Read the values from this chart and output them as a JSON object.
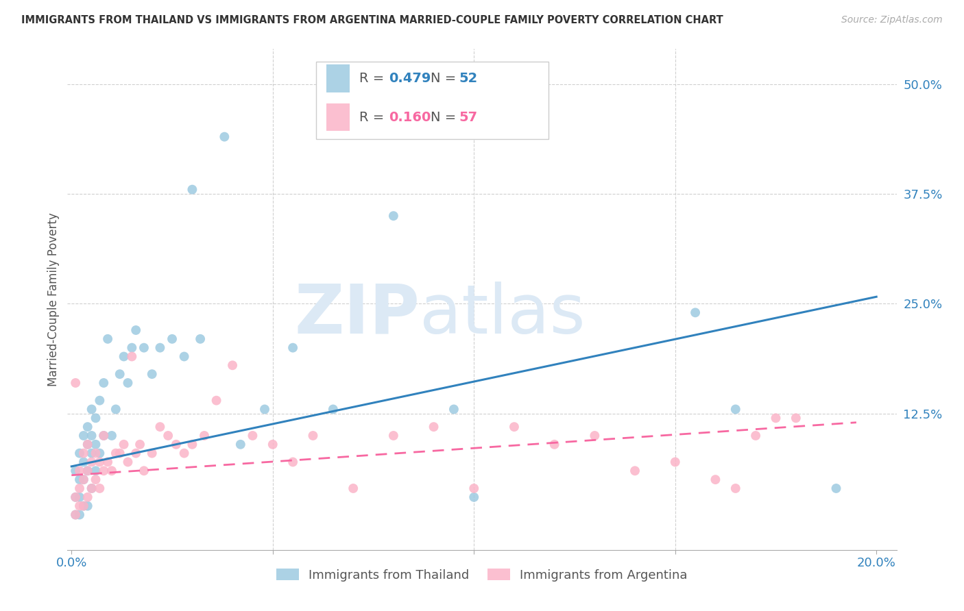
{
  "title": "IMMIGRANTS FROM THAILAND VS IMMIGRANTS FROM ARGENTINA MARRIED-COUPLE FAMILY POVERTY CORRELATION CHART",
  "source": "Source: ZipAtlas.com",
  "ylabel": "Married-Couple Family Poverty",
  "xlim": [
    -0.001,
    0.205
  ],
  "ylim": [
    -0.03,
    0.54
  ],
  "xticks": [
    0.0,
    0.05,
    0.1,
    0.15,
    0.2
  ],
  "xtick_labels": [
    "0.0%",
    "",
    "",
    "",
    "20.0%"
  ],
  "ytick_labels": [
    "12.5%",
    "25.0%",
    "37.5%",
    "50.0%"
  ],
  "yticks": [
    0.125,
    0.25,
    0.375,
    0.5
  ],
  "thailand_color": "#9ecae1",
  "argentina_color": "#fbb4c8",
  "trend_thailand_color": "#3182bd",
  "trend_argentina_color": "#f768a1",
  "watermark_zip_color": "#dce9f5",
  "watermark_atlas_color": "#dce9f5",
  "legend_r_thailand": "0.479",
  "legend_n_thailand": "52",
  "legend_r_argentina": "0.160",
  "legend_n_argentina": "57",
  "legend_label_thailand": "Immigrants from Thailand",
  "legend_label_argentina": "Immigrants from Argentina",
  "thailand_R": 0.479,
  "argentina_R": 0.16,
  "thailand_x": [
    0.001,
    0.001,
    0.001,
    0.002,
    0.002,
    0.002,
    0.002,
    0.003,
    0.003,
    0.003,
    0.003,
    0.004,
    0.004,
    0.004,
    0.004,
    0.005,
    0.005,
    0.005,
    0.005,
    0.006,
    0.006,
    0.006,
    0.007,
    0.007,
    0.008,
    0.008,
    0.009,
    0.01,
    0.011,
    0.012,
    0.013,
    0.014,
    0.015,
    0.016,
    0.018,
    0.02,
    0.022,
    0.025,
    0.028,
    0.03,
    0.032,
    0.038,
    0.042,
    0.048,
    0.055,
    0.065,
    0.08,
    0.095,
    0.1,
    0.155,
    0.165,
    0.19
  ],
  "thailand_y": [
    0.01,
    0.03,
    0.06,
    0.01,
    0.03,
    0.05,
    0.08,
    0.02,
    0.05,
    0.07,
    0.1,
    0.02,
    0.06,
    0.09,
    0.11,
    0.04,
    0.08,
    0.1,
    0.13,
    0.06,
    0.09,
    0.12,
    0.08,
    0.14,
    0.1,
    0.16,
    0.21,
    0.1,
    0.13,
    0.17,
    0.19,
    0.16,
    0.2,
    0.22,
    0.2,
    0.17,
    0.2,
    0.21,
    0.19,
    0.38,
    0.21,
    0.44,
    0.09,
    0.13,
    0.2,
    0.13,
    0.35,
    0.13,
    0.03,
    0.24,
    0.13,
    0.04
  ],
  "argentina_x": [
    0.001,
    0.001,
    0.001,
    0.002,
    0.002,
    0.002,
    0.003,
    0.003,
    0.003,
    0.004,
    0.004,
    0.004,
    0.005,
    0.005,
    0.006,
    0.006,
    0.007,
    0.007,
    0.008,
    0.008,
    0.009,
    0.01,
    0.011,
    0.012,
    0.013,
    0.014,
    0.015,
    0.016,
    0.017,
    0.018,
    0.02,
    0.022,
    0.024,
    0.026,
    0.028,
    0.03,
    0.033,
    0.036,
    0.04,
    0.045,
    0.05,
    0.055,
    0.06,
    0.07,
    0.08,
    0.09,
    0.1,
    0.11,
    0.12,
    0.13,
    0.14,
    0.15,
    0.16,
    0.165,
    0.17,
    0.175,
    0.18
  ],
  "argentina_y": [
    0.01,
    0.03,
    0.16,
    0.02,
    0.04,
    0.06,
    0.02,
    0.05,
    0.08,
    0.03,
    0.06,
    0.09,
    0.04,
    0.07,
    0.05,
    0.08,
    0.04,
    0.07,
    0.06,
    0.1,
    0.07,
    0.06,
    0.08,
    0.08,
    0.09,
    0.07,
    0.19,
    0.08,
    0.09,
    0.06,
    0.08,
    0.11,
    0.1,
    0.09,
    0.08,
    0.09,
    0.1,
    0.14,
    0.18,
    0.1,
    0.09,
    0.07,
    0.1,
    0.04,
    0.1,
    0.11,
    0.04,
    0.11,
    0.09,
    0.1,
    0.06,
    0.07,
    0.05,
    0.04,
    0.1,
    0.12,
    0.12
  ],
  "trend_thailand_x0": 0.0,
  "trend_thailand_x1": 0.2,
  "trend_thailand_y0": 0.065,
  "trend_thailand_y1": 0.258,
  "trend_argentina_x0": 0.0,
  "trend_argentina_x1": 0.195,
  "trend_argentina_y0": 0.055,
  "trend_argentina_y1": 0.115
}
